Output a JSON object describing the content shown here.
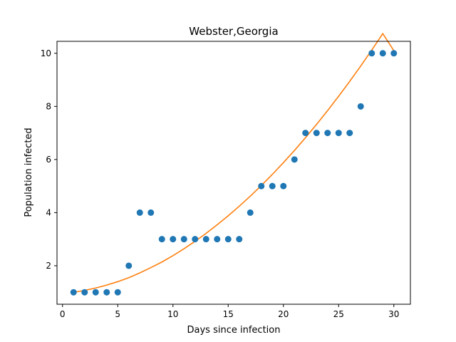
{
  "chart_data": {
    "type": "scatter",
    "title": "Webster,Georgia",
    "xlabel": "Days since infection",
    "ylabel": "Population infected",
    "xlim": [
      -0.5,
      31.5
    ],
    "ylim": [
      0.55,
      10.45
    ],
    "xticks": [
      0,
      5,
      10,
      15,
      20,
      25,
      30
    ],
    "yticks": [
      2,
      4,
      6,
      8,
      10
    ],
    "grid": false,
    "series": [
      {
        "kind": "points",
        "color": "#1f77b4",
        "x": [
          1,
          2,
          3,
          4,
          5,
          6,
          7,
          8,
          9,
          10,
          11,
          12,
          13,
          14,
          15,
          16,
          17,
          18,
          19,
          20,
          21,
          22,
          23,
          24,
          25,
          26,
          27,
          28,
          29,
          30
        ],
        "y": [
          1,
          1,
          1,
          1,
          1,
          2,
          4,
          4,
          3,
          3,
          3,
          3,
          3,
          3,
          3,
          3,
          4,
          5,
          5,
          5,
          6,
          7,
          7,
          7,
          7,
          7,
          8,
          10,
          10,
          10
        ]
      },
      {
        "kind": "fit-line",
        "color": "#ff7f0e",
        "x": [
          1,
          2,
          3,
          4,
          5,
          6,
          7,
          8,
          9,
          10,
          11,
          12,
          13,
          14,
          15,
          16,
          17,
          18,
          19,
          20,
          21,
          22,
          23,
          24,
          25,
          26,
          27,
          28,
          29,
          30
        ],
        "y": [
          1.0,
          1.07,
          1.16,
          1.27,
          1.4,
          1.55,
          1.73,
          1.93,
          2.14,
          2.38,
          2.64,
          2.92,
          3.22,
          3.54,
          3.88,
          4.24,
          4.62,
          5.02,
          5.44,
          5.88,
          6.34,
          6.82,
          7.32,
          7.84,
          8.38,
          8.94,
          9.52,
          10.12,
          10.74,
          10.1
        ]
      }
    ]
  }
}
